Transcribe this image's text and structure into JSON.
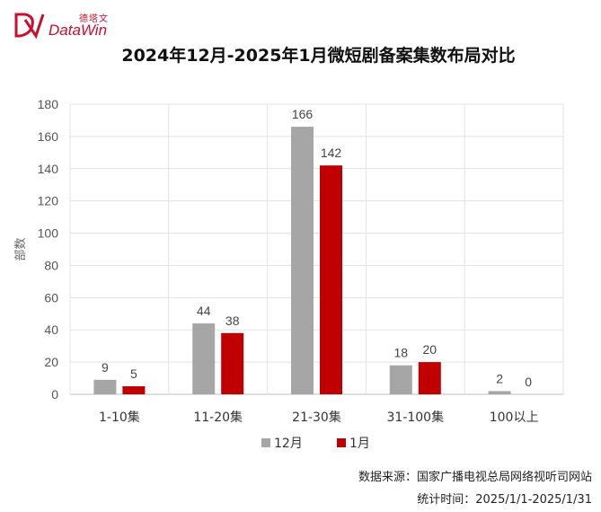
{
  "logo": {
    "cn": "德塔文",
    "en": "DataWin"
  },
  "title": "2024年12月-2025年1月微短剧备案集数布局对比",
  "source_line": "数据来源：国家广播电视总局网络视听司网站",
  "time_line": "统计时间：2025/1/1-2025/1/31",
  "colors": {
    "dec": "#a6a6a6",
    "jan": "#c00000",
    "brand": "#c8102e"
  },
  "chart_data": {
    "type": "bar",
    "title": "2024年12月-2025年1月微短剧备案集数布局对比",
    "ylabel": "部数",
    "xlabel": "",
    "ylim": [
      0,
      180
    ],
    "yticks": [
      0,
      20,
      40,
      60,
      80,
      100,
      120,
      140,
      160,
      180
    ],
    "grid": true,
    "legend_position": "bottom",
    "categories": [
      "1-10集",
      "11-20集",
      "21-30集",
      "31-100集",
      "100以上"
    ],
    "series": [
      {
        "name": "12月",
        "values": [
          9,
          44,
          166,
          18,
          2
        ]
      },
      {
        "name": "1月",
        "values": [
          5,
          38,
          142,
          20,
          0
        ]
      }
    ]
  }
}
